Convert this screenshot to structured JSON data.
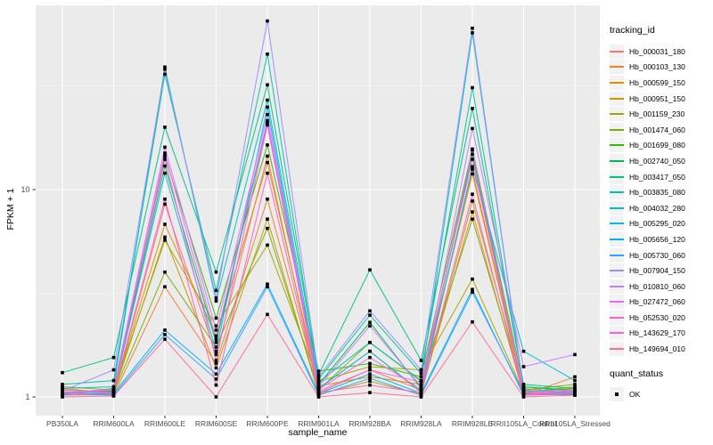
{
  "figure": {
    "background": "#FFFFFF",
    "panel_bg": "#EBEBEB",
    "grid_color": "#FFFFFF",
    "tick_color": "#333333",
    "tick_text_color": "#4D4D4D",
    "point_color": "#000000"
  },
  "chart_data": {
    "type": "line",
    "title": "",
    "xlabel": "sample_name",
    "ylabel": "FPKM + 1",
    "y_scale": "log10",
    "y_tick_labels": [
      "1",
      "10"
    ],
    "y_ticks": [
      1,
      10
    ],
    "y_minor_ticks": [
      3.162,
      31.623
    ],
    "ylim": [
      0.82,
      77
    ],
    "grid": "major-white-on-grey",
    "legend_position": "right",
    "point_shape": "filled-square",
    "x_categories": [
      "PB350LA",
      "RRIM600LA",
      "RRIM600LE",
      "RRIM600SE",
      "RRIM600PE",
      "RRIM901LA",
      "RRIM928BA",
      "RRIM928LA",
      "RRIM928LE",
      "RRII105LA_Control",
      "RRII105LA_Stressed"
    ],
    "series": [
      {
        "name": "Hb_000031_180",
        "color": "#F8766D",
        "values": [
          1.02,
          1.03,
          8.5,
          1.6,
          14.5,
          1.05,
          1.35,
          1.08,
          12.5,
          1.04,
          1.06
        ]
      },
      {
        "name": "Hb_000103_130",
        "color": "#EA8331",
        "values": [
          1.05,
          1.02,
          3.4,
          1.45,
          9.0,
          1.1,
          1.66,
          1.05,
          7.8,
          1.02,
          1.25
        ]
      },
      {
        "name": "Hb_000599_150",
        "color": "#D89000",
        "values": [
          1.08,
          1.06,
          6.8,
          1.97,
          13.5,
          1.13,
          1.25,
          1.15,
          11.9,
          1.06,
          1.1
        ]
      },
      {
        "name": "Hb_000951_150",
        "color": "#C09B00",
        "values": [
          1.1,
          1.04,
          5.9,
          1.38,
          7.2,
          1.03,
          1.19,
          1.03,
          8.8,
          1.1,
          1.04
        ]
      },
      {
        "name": "Hb_001159_230",
        "color": "#A3A500",
        "values": [
          1.12,
          1.08,
          5.7,
          2.2,
          5.4,
          1.19,
          1.4,
          1.35,
          3.7,
          1.05,
          1.12
        ]
      },
      {
        "name": "Hb_001474_060",
        "color": "#7CAE00",
        "values": [
          1.06,
          1.05,
          4.0,
          1.74,
          6.5,
          1.08,
          1.83,
          1.19,
          7.2,
          1.08,
          1.15
        ]
      },
      {
        "name": "Hb_001699_080",
        "color": "#39B600",
        "values": [
          1.03,
          1.1,
          14.5,
          2.4,
          16.4,
          1.33,
          1.45,
          1.25,
          15.7,
          1.12,
          1.08
        ]
      },
      {
        "name": "Hb_002740_050",
        "color": "#00BB4E",
        "values": [
          1.05,
          1.07,
          13.0,
          1.83,
          21.0,
          1.15,
          2.29,
          1.1,
          14.8,
          1.03,
          1.05
        ]
      },
      {
        "name": "Hb_003417_050",
        "color": "#00C087",
        "values": [
          1.31,
          1.55,
          20.0,
          4.0,
          32.0,
          1.28,
          4.1,
          1.5,
          24.6,
          1.15,
          1.1
        ]
      },
      {
        "name": "Hb_003835_080",
        "color": "#00C1A3",
        "values": [
          1.15,
          1.2,
          36.0,
          3.26,
          45.0,
          1.22,
          2.48,
          1.3,
          31.0,
          1.12,
          1.06
        ]
      },
      {
        "name": "Hb_004032_280",
        "color": "#00BFC4",
        "values": [
          1.1,
          1.12,
          39.0,
          2.9,
          27.0,
          1.18,
          1.83,
          1.2,
          57.0,
          1.08,
          1.04
        ]
      },
      {
        "name": "Hb_005295_020",
        "color": "#00BAE0",
        "values": [
          1.04,
          1.06,
          12.0,
          1.66,
          25.0,
          1.1,
          1.66,
          1.06,
          12.9,
          1.66,
          1.2
        ]
      },
      {
        "name": "Hb_005656_120",
        "color": "#00B0F6",
        "values": [
          1.02,
          1.04,
          2.1,
          1.29,
          3.5,
          1.04,
          1.29,
          1.04,
          3.3,
          1.02,
          1.03
        ]
      },
      {
        "name": "Hb_005730_060",
        "color": "#35A2FF",
        "values": [
          1.03,
          1.02,
          2.0,
          1.22,
          3.4,
          1.02,
          1.23,
          1.02,
          3.2,
          1.04,
          1.02
        ]
      },
      {
        "name": "Hb_007904_150",
        "color": "#9590FF",
        "values": [
          1.07,
          1.35,
          38.0,
          3.0,
          65.0,
          1.25,
          2.6,
          1.35,
          60.0,
          1.07,
          1.08
        ]
      },
      {
        "name": "Hb_010810_060",
        "color": "#C77CFF",
        "values": [
          1.05,
          1.09,
          16.0,
          2.1,
          23.0,
          1.12,
          2.2,
          1.12,
          19.7,
          1.4,
          1.6
        ]
      },
      {
        "name": "Hb_027472_060",
        "color": "#E76BF3",
        "values": [
          1.08,
          1.05,
          15.0,
          1.9,
          21.5,
          1.09,
          1.55,
          1.09,
          15.5,
          1.05,
          1.07
        ]
      },
      {
        "name": "Hb_052530_020",
        "color": "#FA62DB",
        "values": [
          1.04,
          1.08,
          14.0,
          1.5,
          20.5,
          1.07,
          1.35,
          1.18,
          14.0,
          1.03,
          1.05
        ]
      },
      {
        "name": "Hb_143629_170",
        "color": "#FF62BC",
        "values": [
          1.02,
          1.05,
          9.0,
          1.14,
          12.0,
          1.05,
          1.14,
          1.05,
          9.5,
          1.02,
          1.04
        ]
      },
      {
        "name": "Hb_149694_010",
        "color": "#FF6A98",
        "values": [
          1.0,
          1.01,
          1.9,
          1.0,
          2.5,
          1.0,
          1.05,
          1.0,
          2.3,
          1.0,
          1.02
        ]
      }
    ],
    "legends": {
      "color": {
        "title": "tracking_id"
      },
      "shape": {
        "title": "quant_status",
        "items": [
          {
            "label": "OK"
          }
        ]
      }
    }
  }
}
